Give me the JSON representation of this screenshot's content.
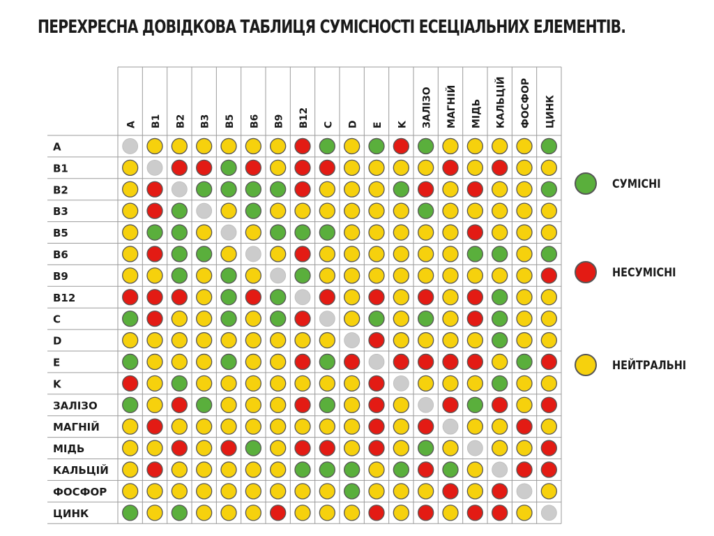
{
  "title": "ПЕРЕХРЕСНА ДОВІДКОВА ТАБЛИЦЯ СУМІСНОСТІ ЕСЕЦІАЛЬНИХ ЕЛЕМЕНТІВ.",
  "colors": {
    "green": "#5aaf3c",
    "red": "#e31b14",
    "yellow": "#f6d10d",
    "gray": "#cccccc"
  },
  "legend": [
    {
      "key": "green",
      "label": "СУМІСНІ"
    },
    {
      "key": "red",
      "label": "НЕСУМІСНІ"
    },
    {
      "key": "yellow",
      "label": "НЕЙТРАЛЬНІ"
    }
  ],
  "chart_data": {
    "type": "heatmap",
    "title": "ПЕРЕХРЕСНА ДОВІДКОВА ТАБЛИЦЯ СУМІСНОСТІ ЕСЕЦІАЛЬНИХ ЕЛЕМЕНТІВ.",
    "columns": [
      "A",
      "B1",
      "B2",
      "B3",
      "B5",
      "B6",
      "B9",
      "B12",
      "C",
      "D",
      "E",
      "K",
      "ЗАЛІЗО",
      "МАГНІЙ",
      "МІДЬ",
      "КАЛЬЦІЙ",
      "ФОСФОР",
      "ЦИНК"
    ],
    "rows": [
      "A",
      "B1",
      "B2",
      "B3",
      "B5",
      "B6",
      "B9",
      "B12",
      "C",
      "D",
      "E",
      "K",
      "ЗАЛІЗО",
      "МАГНІЙ",
      "МІДЬ",
      "КАЛЬЦІЙ",
      "ФОСФОР",
      "ЦИНК"
    ],
    "codes": {
      "G": "СУМІСНІ",
      "R": "НЕСУМІСНІ",
      "Y": "НЕЙТРАЛЬНІ",
      "N": "—"
    },
    "values": [
      [
        "N",
        "Y",
        "Y",
        "Y",
        "Y",
        "Y",
        "Y",
        "R",
        "G",
        "Y",
        "G",
        "R",
        "G",
        "Y",
        "Y",
        "Y",
        "Y",
        "G"
      ],
      [
        "Y",
        "N",
        "R",
        "R",
        "G",
        "R",
        "Y",
        "R",
        "R",
        "Y",
        "Y",
        "Y",
        "Y",
        "R",
        "Y",
        "R",
        "Y",
        "Y"
      ],
      [
        "Y",
        "R",
        "N",
        "G",
        "G",
        "G",
        "G",
        "R",
        "Y",
        "Y",
        "Y",
        "G",
        "R",
        "Y",
        "R",
        "Y",
        "Y",
        "G"
      ],
      [
        "Y",
        "R",
        "G",
        "N",
        "Y",
        "G",
        "Y",
        "Y",
        "Y",
        "Y",
        "Y",
        "Y",
        "G",
        "Y",
        "Y",
        "Y",
        "Y",
        "Y"
      ],
      [
        "Y",
        "G",
        "G",
        "Y",
        "N",
        "Y",
        "G",
        "G",
        "G",
        "Y",
        "Y",
        "Y",
        "Y",
        "Y",
        "R",
        "Y",
        "Y",
        "Y"
      ],
      [
        "Y",
        "R",
        "G",
        "G",
        "Y",
        "N",
        "Y",
        "R",
        "Y",
        "Y",
        "Y",
        "Y",
        "Y",
        "Y",
        "G",
        "G",
        "Y",
        "G"
      ],
      [
        "Y",
        "Y",
        "G",
        "Y",
        "G",
        "Y",
        "N",
        "G",
        "Y",
        "Y",
        "Y",
        "Y",
        "Y",
        "Y",
        "Y",
        "Y",
        "Y",
        "R"
      ],
      [
        "R",
        "R",
        "R",
        "Y",
        "G",
        "R",
        "G",
        "N",
        "R",
        "Y",
        "R",
        "Y",
        "R",
        "Y",
        "R",
        "G",
        "Y",
        "Y"
      ],
      [
        "G",
        "R",
        "Y",
        "Y",
        "G",
        "Y",
        "G",
        "R",
        "N",
        "Y",
        "G",
        "Y",
        "G",
        "Y",
        "R",
        "G",
        "Y",
        "Y"
      ],
      [
        "Y",
        "Y",
        "Y",
        "Y",
        "Y",
        "Y",
        "Y",
        "Y",
        "Y",
        "N",
        "R",
        "Y",
        "Y",
        "Y",
        "Y",
        "G",
        "Y",
        "Y"
      ],
      [
        "G",
        "Y",
        "Y",
        "Y",
        "G",
        "Y",
        "Y",
        "R",
        "G",
        "R",
        "N",
        "R",
        "R",
        "R",
        "R",
        "Y",
        "G",
        "R"
      ],
      [
        "R",
        "Y",
        "G",
        "Y",
        "Y",
        "Y",
        "Y",
        "Y",
        "Y",
        "Y",
        "R",
        "N",
        "Y",
        "Y",
        "Y",
        "G",
        "Y",
        "Y"
      ],
      [
        "G",
        "Y",
        "R",
        "G",
        "Y",
        "Y",
        "Y",
        "R",
        "G",
        "Y",
        "R",
        "Y",
        "N",
        "R",
        "G",
        "R",
        "Y",
        "R"
      ],
      [
        "Y",
        "R",
        "Y",
        "Y",
        "Y",
        "Y",
        "Y",
        "Y",
        "Y",
        "Y",
        "R",
        "Y",
        "R",
        "N",
        "Y",
        "Y",
        "R",
        "Y"
      ],
      [
        "Y",
        "Y",
        "R",
        "Y",
        "R",
        "G",
        "Y",
        "R",
        "R",
        "Y",
        "R",
        "Y",
        "G",
        "Y",
        "N",
        "Y",
        "Y",
        "R"
      ],
      [
        "Y",
        "R",
        "Y",
        "Y",
        "Y",
        "Y",
        "Y",
        "G",
        "G",
        "G",
        "Y",
        "G",
        "R",
        "G",
        "Y",
        "N",
        "R",
        "R"
      ],
      [
        "Y",
        "Y",
        "Y",
        "Y",
        "Y",
        "Y",
        "Y",
        "Y",
        "Y",
        "G",
        "Y",
        "Y",
        "Y",
        "R",
        "Y",
        "R",
        "N",
        "Y"
      ],
      [
        "G",
        "Y",
        "G",
        "Y",
        "Y",
        "Y",
        "R",
        "Y",
        "Y",
        "Y",
        "R",
        "Y",
        "R",
        "Y",
        "R",
        "R",
        "Y",
        "N"
      ]
    ]
  }
}
